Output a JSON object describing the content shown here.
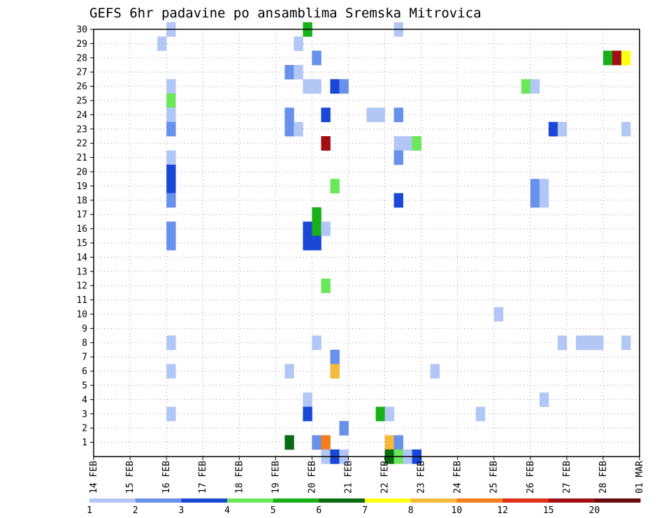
{
  "chart_data": {
    "type": "heatmap",
    "title": "GEFS 6hr padavine po ansamblima Sremska Mitrovica",
    "xlabel": "",
    "ylabel": "",
    "x_tick_labels": [
      "14 FEB",
      "15 FEB",
      "16 FEB",
      "17 FEB",
      "18 FEB",
      "19 FEB",
      "20 FEB",
      "21 FEB",
      "22 FEB",
      "23 FEB",
      "24 FEB",
      "25 FEB",
      "26 FEB",
      "27 FEB",
      "28 FEB",
      "01 MAR"
    ],
    "y_tick_labels": [
      "1",
      "2",
      "3",
      "4",
      "5",
      "6",
      "7",
      "8",
      "9",
      "10",
      "11",
      "12",
      "13",
      "14",
      "15",
      "16",
      "17",
      "18",
      "19",
      "20",
      "21",
      "22",
      "23",
      "24",
      "25",
      "26",
      "27",
      "28",
      "29",
      "30"
    ],
    "xlim": [
      0,
      60
    ],
    "ylim": [
      0,
      30
    ],
    "x_unit": "6-hour step from 14 FEB 00Z",
    "grid": true,
    "colorbar": {
      "labels": [
        "1",
        "2",
        "3",
        "4",
        "5",
        "6",
        "7",
        "8",
        "10",
        "12",
        "15",
        "20"
      ],
      "colors": [
        "#b3c7f7",
        "#6891ec",
        "#1a47d6",
        "#6ae85a",
        "#18b018",
        "#0a6a12",
        "#ffff12",
        "#f5b93c",
        "#f47d1c",
        "#e0301a",
        "#a00f14",
        "#6a0a0a"
      ]
    },
    "cells": [
      {
        "member": 30,
        "step": 8,
        "cat": 0
      },
      {
        "member": 30,
        "step": 23,
        "cat": 4
      },
      {
        "member": 30,
        "step": 33,
        "cat": 0
      },
      {
        "member": 29,
        "step": 7,
        "cat": 0
      },
      {
        "member": 29,
        "step": 22,
        "cat": 0
      },
      {
        "member": 28,
        "step": 24,
        "cat": 1
      },
      {
        "member": 28,
        "step": 56,
        "cat": 4
      },
      {
        "member": 28,
        "step": 57,
        "cat": 10
      },
      {
        "member": 28,
        "step": 58,
        "cat": 6
      },
      {
        "member": 27,
        "step": 21,
        "cat": 1
      },
      {
        "member": 27,
        "step": 22,
        "cat": 0
      },
      {
        "member": 26,
        "step": 8,
        "cat": 0
      },
      {
        "member": 26,
        "step": 23,
        "cat": 0
      },
      {
        "member": 26,
        "step": 24,
        "cat": 0
      },
      {
        "member": 26,
        "step": 26,
        "cat": 2
      },
      {
        "member": 26,
        "step": 27,
        "cat": 1
      },
      {
        "member": 26,
        "step": 47,
        "cat": 3
      },
      {
        "member": 26,
        "step": 48,
        "cat": 0
      },
      {
        "member": 25,
        "step": 8,
        "cat": 3
      },
      {
        "member": 24,
        "step": 8,
        "cat": 0
      },
      {
        "member": 24,
        "step": 21,
        "cat": 1
      },
      {
        "member": 24,
        "step": 25,
        "cat": 2
      },
      {
        "member": 24,
        "step": 30,
        "cat": 0
      },
      {
        "member": 24,
        "step": 31,
        "cat": 0
      },
      {
        "member": 24,
        "step": 33,
        "cat": 1
      },
      {
        "member": 23,
        "step": 8,
        "cat": 1
      },
      {
        "member": 23,
        "step": 21,
        "cat": 1
      },
      {
        "member": 23,
        "step": 22,
        "cat": 0
      },
      {
        "member": 23,
        "step": 50,
        "cat": 2
      },
      {
        "member": 23,
        "step": 51,
        "cat": 0
      },
      {
        "member": 23,
        "step": 58,
        "cat": 0
      },
      {
        "member": 22,
        "step": 25,
        "cat": 10
      },
      {
        "member": 22,
        "step": 33,
        "cat": 0
      },
      {
        "member": 22,
        "step": 34,
        "cat": 0
      },
      {
        "member": 22,
        "step": 35,
        "cat": 3
      },
      {
        "member": 21,
        "step": 8,
        "cat": 0
      },
      {
        "member": 21,
        "step": 33,
        "cat": 1
      },
      {
        "member": 20,
        "step": 8,
        "cat": 2
      },
      {
        "member": 19,
        "step": 8,
        "cat": 2
      },
      {
        "member": 19,
        "step": 26,
        "cat": 3
      },
      {
        "member": 19,
        "step": 48,
        "cat": 1
      },
      {
        "member": 19,
        "step": 49,
        "cat": 0
      },
      {
        "member": 18,
        "step": 8,
        "cat": 1
      },
      {
        "member": 18,
        "step": 48,
        "cat": 1
      },
      {
        "member": 18,
        "step": 49,
        "cat": 0
      },
      {
        "member": 18,
        "step": 33,
        "cat": 2
      },
      {
        "member": 17,
        "step": 24,
        "cat": 4
      },
      {
        "member": 16,
        "step": 8,
        "cat": 1
      },
      {
        "member": 16,
        "step": 23,
        "cat": 2
      },
      {
        "member": 16,
        "step": 24,
        "cat": 4
      },
      {
        "member": 16,
        "step": 25,
        "cat": 0
      },
      {
        "member": 15,
        "step": 8,
        "cat": 1
      },
      {
        "member": 15,
        "step": 23,
        "cat": 2
      },
      {
        "member": 15,
        "step": 24,
        "cat": 2
      },
      {
        "member": 12,
        "step": 25,
        "cat": 3
      },
      {
        "member": 10,
        "step": 44,
        "cat": 0
      },
      {
        "member": 8,
        "step": 8,
        "cat": 0
      },
      {
        "member": 8,
        "step": 24,
        "cat": 0
      },
      {
        "member": 8,
        "step": 51,
        "cat": 0
      },
      {
        "member": 8,
        "step": 53,
        "cat": 0
      },
      {
        "member": 8,
        "step": 54,
        "cat": 0
      },
      {
        "member": 8,
        "step": 55,
        "cat": 0
      },
      {
        "member": 8,
        "step": 58,
        "cat": 0
      },
      {
        "member": 7,
        "step": 26,
        "cat": 1
      },
      {
        "member": 6,
        "step": 8,
        "cat": 0
      },
      {
        "member": 6,
        "step": 21,
        "cat": 0
      },
      {
        "member": 6,
        "step": 26,
        "cat": 7
      },
      {
        "member": 6,
        "step": 37,
        "cat": 0
      },
      {
        "member": 4,
        "step": 23,
        "cat": 0
      },
      {
        "member": 4,
        "step": 49,
        "cat": 0
      },
      {
        "member": 3,
        "step": 8,
        "cat": 0
      },
      {
        "member": 3,
        "step": 23,
        "cat": 2
      },
      {
        "member": 3,
        "step": 31,
        "cat": 4
      },
      {
        "member": 3,
        "step": 32,
        "cat": 0
      },
      {
        "member": 3,
        "step": 42,
        "cat": 0
      },
      {
        "member": 2,
        "step": 27,
        "cat": 1
      },
      {
        "member": 1,
        "step": 21,
        "cat": 5
      },
      {
        "member": 1,
        "step": 24,
        "cat": 1
      },
      {
        "member": 1,
        "step": 25,
        "cat": 8
      },
      {
        "member": 1,
        "step": 32,
        "cat": 7
      },
      {
        "member": 1,
        "step": 33,
        "cat": 1
      },
      {
        "member": 0,
        "step": 25,
        "cat": 0
      },
      {
        "member": 0,
        "step": 26,
        "cat": 2
      },
      {
        "member": 0,
        "step": 27,
        "cat": 0
      },
      {
        "member": 0,
        "step": 32,
        "cat": 5
      },
      {
        "member": 0,
        "step": 33,
        "cat": 3
      },
      {
        "member": 0,
        "step": 34,
        "cat": 0
      },
      {
        "member": 0,
        "step": 35,
        "cat": 2
      }
    ]
  }
}
